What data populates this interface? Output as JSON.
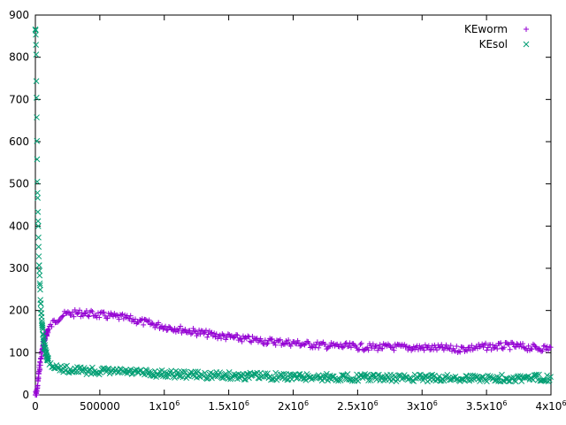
{
  "chart_data": {
    "type": "scatter",
    "xlim": [
      0,
      4000000
    ],
    "ylim": [
      0,
      900
    ],
    "grid": false,
    "legend_position": "top-right",
    "x_ticks": [
      {
        "value": 0,
        "base": "0",
        "sup": ""
      },
      {
        "value": 500000,
        "base": "500000",
        "sup": ""
      },
      {
        "value": 1000000,
        "base": "1x10",
        "sup": "6"
      },
      {
        "value": 1500000,
        "base": "1.5x10",
        "sup": "6"
      },
      {
        "value": 2000000,
        "base": "2x10",
        "sup": "6"
      },
      {
        "value": 2500000,
        "base": "2.5x10",
        "sup": "6"
      },
      {
        "value": 3000000,
        "base": "3x10",
        "sup": "6"
      },
      {
        "value": 3500000,
        "base": "3.5x10",
        "sup": "6"
      },
      {
        "value": 4000000,
        "base": "4x10",
        "sup": "6"
      }
    ],
    "y_ticks": [
      0,
      100,
      200,
      300,
      400,
      500,
      600,
      700,
      800,
      900
    ],
    "series": [
      {
        "name": "KEworm",
        "marker": "plus",
        "color": "#9400d3",
        "points": [
          [
            0,
            0
          ],
          [
            10000,
            5
          ],
          [
            20000,
            30
          ],
          [
            30000,
            60
          ],
          [
            50000,
            100
          ],
          [
            75000,
            135
          ],
          [
            100000,
            155
          ],
          [
            150000,
            175
          ],
          [
            200000,
            187
          ],
          [
            250000,
            192
          ],
          [
            300000,
            193
          ],
          [
            350000,
            194
          ],
          [
            400000,
            193
          ],
          [
            450000,
            191
          ],
          [
            500000,
            189
          ],
          [
            600000,
            186
          ],
          [
            700000,
            182
          ],
          [
            800000,
            175
          ],
          [
            900000,
            168
          ],
          [
            1000000,
            162
          ],
          [
            1100000,
            157
          ],
          [
            1200000,
            151
          ],
          [
            1300000,
            146
          ],
          [
            1400000,
            141
          ],
          [
            1500000,
            137
          ],
          [
            1600000,
            133
          ],
          [
            1700000,
            130
          ],
          [
            1800000,
            127
          ],
          [
            1900000,
            125
          ],
          [
            2000000,
            123
          ],
          [
            2100000,
            120
          ],
          [
            2200000,
            118
          ],
          [
            2300000,
            116
          ],
          [
            2400000,
            115
          ],
          [
            2500000,
            114
          ],
          [
            2600000,
            113
          ],
          [
            2700000,
            113
          ],
          [
            2800000,
            113
          ],
          [
            2900000,
            112
          ],
          [
            3000000,
            112
          ],
          [
            3100000,
            111
          ],
          [
            3200000,
            110
          ],
          [
            3250000,
            108
          ],
          [
            3300000,
            109
          ],
          [
            3400000,
            112
          ],
          [
            3500000,
            114
          ],
          [
            3600000,
            115
          ],
          [
            3700000,
            116
          ],
          [
            3800000,
            113
          ],
          [
            3900000,
            111
          ],
          [
            4000000,
            111
          ]
        ]
      },
      {
        "name": "KEsol",
        "marker": "cross",
        "color": "#009e73",
        "points": [
          [
            0,
            870
          ],
          [
            3000,
            860
          ],
          [
            6000,
            800
          ],
          [
            9000,
            700
          ],
          [
            12000,
            600
          ],
          [
            15000,
            510
          ],
          [
            18000,
            460
          ],
          [
            22000,
            400
          ],
          [
            26000,
            340
          ],
          [
            30000,
            300
          ],
          [
            35000,
            260
          ],
          [
            40000,
            225
          ],
          [
            50000,
            175
          ],
          [
            60000,
            140
          ],
          [
            70000,
            115
          ],
          [
            80000,
            100
          ],
          [
            100000,
            82
          ],
          [
            125000,
            72
          ],
          [
            150000,
            66
          ],
          [
            200000,
            62
          ],
          [
            300000,
            59
          ],
          [
            400000,
            57
          ],
          [
            500000,
            56
          ],
          [
            600000,
            55
          ],
          [
            700000,
            54
          ],
          [
            800000,
            52
          ],
          [
            900000,
            51
          ],
          [
            1000000,
            50
          ],
          [
            1200000,
            48
          ],
          [
            1400000,
            46
          ],
          [
            1600000,
            45
          ],
          [
            1800000,
            44
          ],
          [
            2000000,
            43
          ],
          [
            2200000,
            42
          ],
          [
            2400000,
            41
          ],
          [
            2600000,
            41
          ],
          [
            2800000,
            40
          ],
          [
            3000000,
            40
          ],
          [
            3200000,
            40
          ],
          [
            3400000,
            40
          ],
          [
            3600000,
            40
          ],
          [
            3800000,
            40
          ],
          [
            4000000,
            40
          ]
        ]
      }
    ]
  }
}
